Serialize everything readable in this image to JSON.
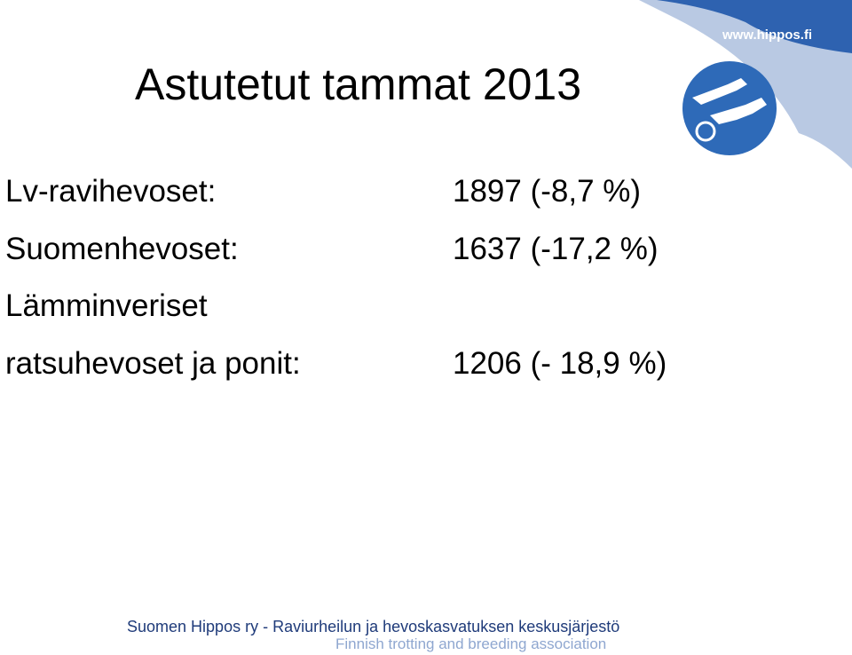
{
  "header": {
    "title": "Astutetut tammat 2013",
    "logo_url": "www.hippos.fi"
  },
  "rows": [
    {
      "label": [
        "Lv-ravihevoset:"
      ],
      "value": "1897 (-8,7 %)"
    },
    {
      "label": [
        "Suomenhevoset:"
      ],
      "value": "1637 (-17,2 %)"
    },
    {
      "label": [
        "Lämminveriset",
        "ratsuhevoset ja ponit:"
      ],
      "value": "1206 (- 18,9 %)"
    }
  ],
  "footer": {
    "line1": "Suomen Hippos ry - Raviurheilun ja hevoskasvatuksen keskusjärjestö",
    "line2": "Finnish trotting and breeding association"
  }
}
